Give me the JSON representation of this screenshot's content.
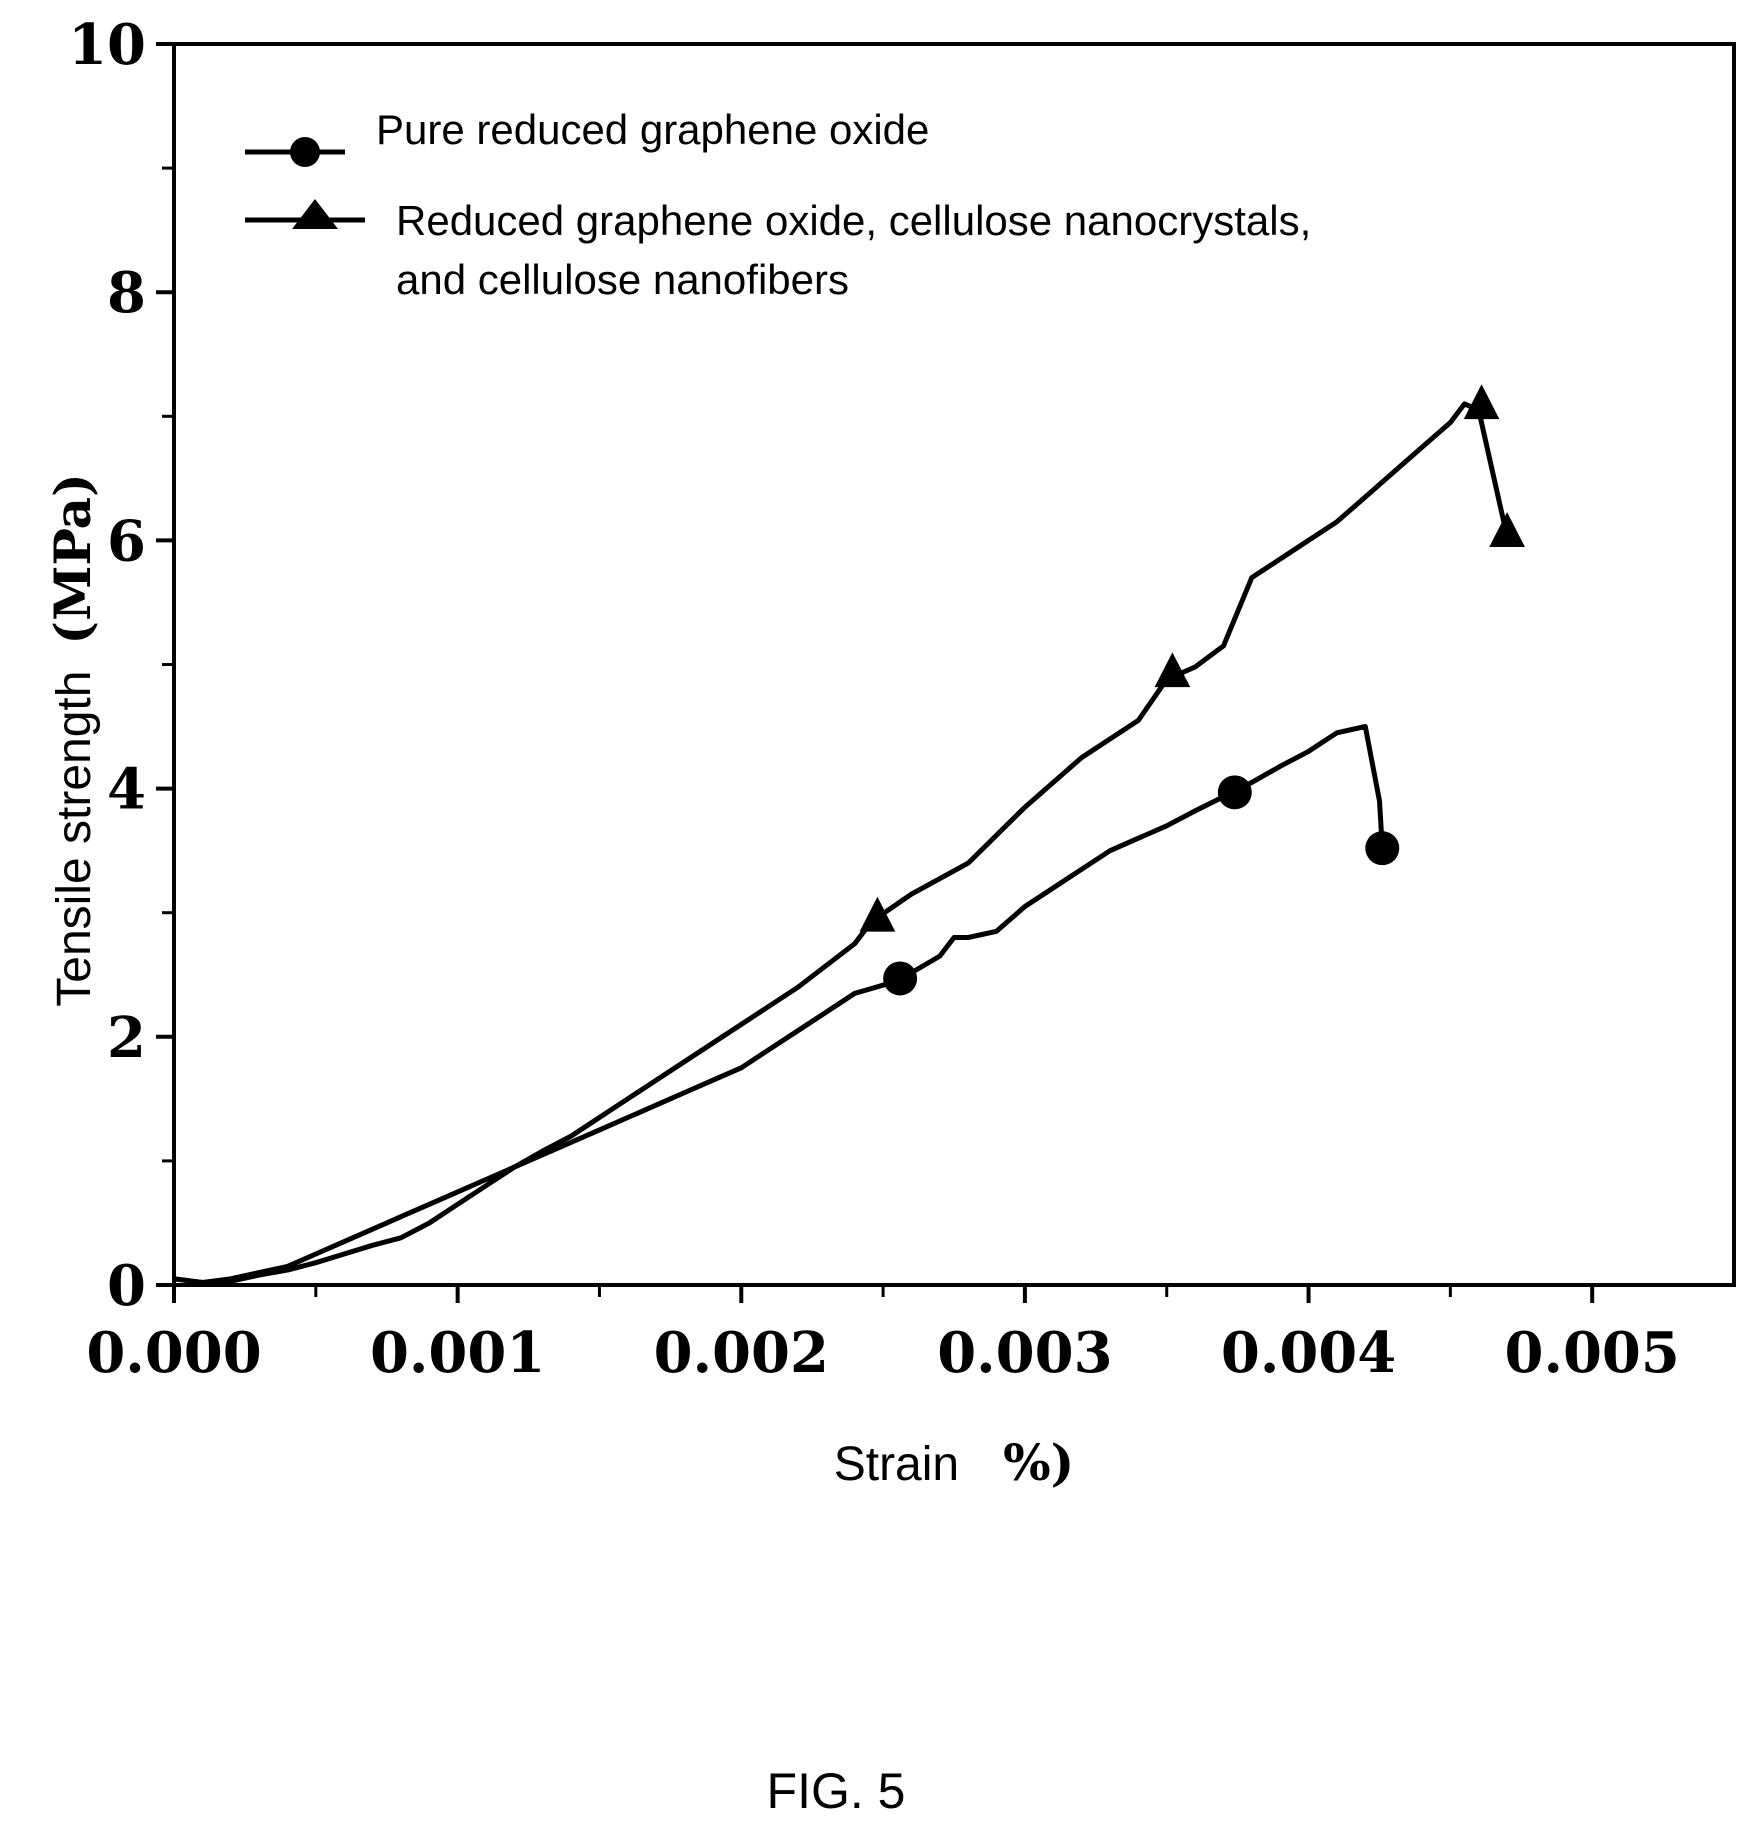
{
  "chart_data": {
    "type": "line",
    "xlabel": {
      "word": "Strain",
      "unit": "%)"
    },
    "ylabel": {
      "word": "Tensile strength",
      "unit": "(MPa)"
    },
    "xlim": [
      0,
      0.0055
    ],
    "ylim": [
      0,
      10
    ],
    "xticks": [
      0.0,
      0.001,
      0.002,
      0.003,
      0.004,
      0.005
    ],
    "xtick_labels": [
      "0.000",
      "0.001",
      "0.002",
      "0.003",
      "0.004",
      "0.005"
    ],
    "yticks": [
      0,
      2,
      4,
      6,
      8,
      10
    ],
    "ytick_labels": [
      "0",
      "2",
      "4",
      "6",
      "8",
      "10"
    ],
    "grid": false,
    "legend_position": "top-left",
    "series": [
      {
        "name": "Pure reduced graphene oxide",
        "marker": "circle",
        "x": [
          0,
          0.0001,
          0.0002,
          0.0003,
          0.0004,
          0.0005,
          0.0006,
          0.0007,
          0.0008,
          0.0009,
          0.001,
          0.0011,
          0.0012,
          0.0013,
          0.0014,
          0.0015,
          0.0016,
          0.0017,
          0.0018,
          0.0019,
          0.002,
          0.0021,
          0.0022,
          0.0023,
          0.0024,
          0.00255,
          0.0027,
          0.00275,
          0.0028,
          0.0029,
          0.003,
          0.0031,
          0.0032,
          0.0033,
          0.0034,
          0.0035,
          0.0036,
          0.00374,
          0.0038,
          0.0039,
          0.004,
          0.0041,
          0.0042,
          0.00425,
          0.00426
        ],
        "y": [
          0.05,
          0.02,
          0.05,
          0.1,
          0.15,
          0.25,
          0.35,
          0.45,
          0.55,
          0.65,
          0.75,
          0.85,
          0.95,
          1.05,
          1.15,
          1.25,
          1.35,
          1.45,
          1.55,
          1.65,
          1.75,
          1.9,
          2.05,
          2.2,
          2.35,
          2.45,
          2.65,
          2.8,
          2.8,
          2.85,
          3.05,
          3.2,
          3.35,
          3.5,
          3.6,
          3.7,
          3.82,
          3.98,
          4.05,
          4.18,
          4.3,
          4.45,
          4.5,
          3.9,
          3.52
        ]
      },
      {
        "name": "Reduced graphene oxide, cellulose nanocrystals,",
        "name_line2": "and cellulose nanofibers",
        "marker": "triangle",
        "x": [
          0,
          0.0001,
          0.0002,
          0.0003,
          0.0004,
          0.0005,
          0.0006,
          0.0007,
          0.0008,
          0.0009,
          0.001,
          0.0011,
          0.0012,
          0.0013,
          0.0014,
          0.0016,
          0.0018,
          0.002,
          0.0022,
          0.0024,
          0.00246,
          0.0026,
          0.0028,
          0.003,
          0.0032,
          0.0034,
          0.0035,
          0.0036,
          0.0037,
          0.0038,
          0.0039,
          0.004,
          0.0041,
          0.0042,
          0.0043,
          0.0044,
          0.0045,
          0.00455,
          0.0046,
          0.0047
        ],
        "y": [
          0.05,
          0.02,
          0.03,
          0.08,
          0.12,
          0.18,
          0.25,
          0.32,
          0.38,
          0.5,
          0.65,
          0.8,
          0.95,
          1.08,
          1.2,
          1.5,
          1.8,
          2.1,
          2.4,
          2.75,
          2.93,
          3.15,
          3.4,
          3.85,
          4.25,
          4.55,
          4.88,
          4.98,
          5.15,
          5.7,
          5.85,
          6.0,
          6.15,
          6.35,
          6.55,
          6.75,
          6.95,
          7.1,
          7.05,
          6.03
        ]
      }
    ],
    "marker_points": [
      {
        "x": [
          0.00256,
          0.00374,
          0.00426
        ],
        "y": [
          2.47,
          3.97,
          3.52
        ]
      },
      {
        "x": [
          0.00248,
          0.00352,
          0.00461,
          0.0047
        ],
        "y": [
          2.95,
          4.92,
          7.08,
          6.05
        ]
      }
    ]
  },
  "figure_label": "FIG. 5"
}
